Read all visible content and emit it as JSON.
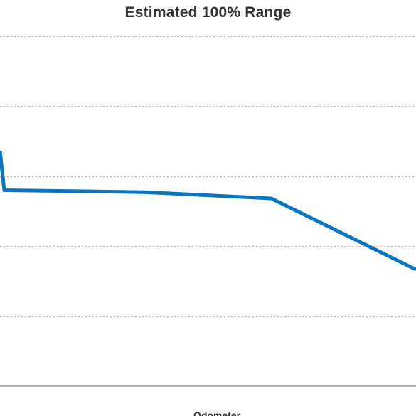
{
  "chart_data": {
    "type": "line",
    "title": "Estimated 100% Range",
    "xlabel": "Odometer",
    "ylabel": "",
    "grid": true,
    "legend": "none",
    "series": [
      {
        "color": "#0b76bf",
        "points": [
          [
            0,
            220.5
          ],
          [
            0.5,
            210.4
          ],
          [
            17.3,
            209.9
          ],
          [
            32.6,
            208.3
          ],
          [
            50.0,
            190.0
          ]
        ]
      }
    ],
    "ylim": [
      160,
      250
    ],
    "xlim": [
      0,
      50
    ],
    "gridlines": [
      250,
      232,
      214,
      196,
      178
    ]
  }
}
